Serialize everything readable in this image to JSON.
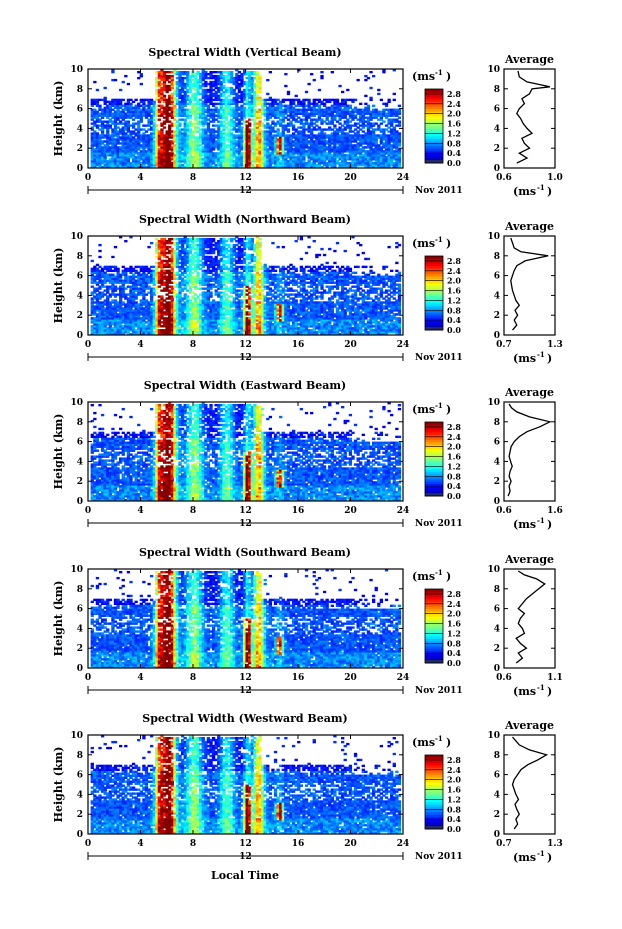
{
  "figure": {
    "xlabel": "Local Time",
    "date_label": "Nov 2011",
    "day_label": "12",
    "ylabel": "Height (km)",
    "colorbar_unit": "(ms",
    "colorbar_unit_exp": "-1",
    "colorbar_unit_end": ")",
    "avg_title": "Average",
    "avg_xunit": "(ms",
    "avg_xunit_exp": "-1",
    "avg_xunit_end": ")"
  },
  "panels": [
    {
      "title": "Spectral Width (Vertical Beam)"
    },
    {
      "title": "Spectral Width (Northward Beam)"
    },
    {
      "title": "Spectral Width (Eastward Beam)"
    },
    {
      "title": "Spectral Width (Southward Beam)"
    },
    {
      "title": "Spectral Width (Westward Beam)"
    }
  ],
  "chart_data": [
    {
      "type": "heatmap",
      "title": "Spectral Width (Vertical Beam)",
      "xlabel": "",
      "ylabel": "Height (km)",
      "xlim": [
        0,
        24
      ],
      "ylim": [
        0,
        10
      ],
      "xticks": [
        0,
        4,
        8,
        12,
        16,
        20,
        24
      ],
      "yticks": [
        0,
        2,
        4,
        6,
        8,
        10
      ],
      "colorbar": {
        "ticks": [
          0.0,
          0.4,
          0.8,
          1.2,
          1.6,
          2.0,
          2.4,
          2.8
        ],
        "range": [
          0,
          3.0
        ]
      },
      "features": [
        {
          "x": [
            5.5,
            6.5
          ],
          "y": [
            0.5,
            10
          ],
          "value": 2.8
        },
        {
          "x": [
            11.8,
            12.3
          ],
          "y": [
            1.5,
            5
          ],
          "value": 2.8
        },
        {
          "x": [
            14.3,
            14.7
          ],
          "y": [
            1.5,
            3
          ],
          "value": 2.6
        }
      ]
    },
    {
      "type": "line",
      "title": "Average",
      "xlabel": "(ms-1)",
      "xlim": [
        0.6,
        1.0
      ],
      "ylim": [
        0,
        10
      ],
      "xticks": [
        0.6,
        1.0
      ],
      "yticks": [
        0,
        2,
        4,
        6,
        8,
        10
      ],
      "series": [
        {
          "x": [
            0.7,
            0.78,
            0.72,
            0.8,
            0.76,
            0.74,
            0.82,
            0.78,
            0.75,
            0.73,
            0.7,
            0.72,
            0.76,
            0.74,
            0.8,
            0.82,
            0.96,
            0.78,
            0.72,
            0.71
          ],
          "y": [
            0.5,
            1,
            1.5,
            2,
            2.5,
            3,
            3.5,
            4,
            4.5,
            5,
            5.5,
            6,
            6.5,
            7,
            7.5,
            8,
            8.2,
            8.7,
            9.2,
            9.8
          ]
        }
      ]
    },
    {
      "type": "heatmap",
      "title": "Spectral Width (Northward Beam)",
      "xlabel": "",
      "ylabel": "Height (km)",
      "xlim": [
        0,
        24
      ],
      "ylim": [
        0,
        10
      ],
      "xticks": [
        0,
        4,
        8,
        12,
        16,
        20,
        24
      ],
      "yticks": [
        0,
        2,
        4,
        6,
        8,
        10
      ],
      "colorbar": {
        "ticks": [
          0.0,
          0.4,
          0.8,
          1.2,
          1.6,
          2.0,
          2.4,
          2.8
        ],
        "range": [
          0,
          3.0
        ]
      },
      "features": [
        {
          "x": [
            5.5,
            6.5
          ],
          "y": [
            0.5,
            10
          ],
          "value": 2.8
        },
        {
          "x": [
            11.8,
            12.3
          ],
          "y": [
            1.5,
            5
          ],
          "value": 2.8
        },
        {
          "x": [
            14.3,
            14.7
          ],
          "y": [
            1.5,
            3
          ],
          "value": 2.6
        }
      ]
    },
    {
      "type": "line",
      "title": "Average",
      "xlabel": "(ms-1)",
      "xlim": [
        0.7,
        1.3
      ],
      "ylim": [
        0,
        10
      ],
      "xticks": [
        0.7,
        1.3
      ],
      "yticks": [
        0,
        2,
        4,
        6,
        8,
        10
      ],
      "series": [
        {
          "x": [
            0.8,
            0.85,
            0.82,
            0.86,
            0.83,
            0.88,
            0.84,
            0.82,
            0.8,
            0.79,
            0.78,
            0.8,
            0.82,
            0.85,
            0.95,
            1.22,
            0.9,
            0.82,
            0.8,
            0.78
          ],
          "y": [
            0.5,
            1,
            1.5,
            2,
            2.5,
            3,
            3.5,
            4,
            4.5,
            5,
            5.5,
            6,
            6.5,
            7,
            7.5,
            8,
            8.4,
            8.8,
            9.3,
            9.8
          ]
        }
      ]
    },
    {
      "type": "heatmap",
      "title": "Spectral Width (Eastward Beam)",
      "xlabel": "",
      "ylabel": "Height (km)",
      "xlim": [
        0,
        24
      ],
      "ylim": [
        0,
        10
      ],
      "xticks": [
        0,
        4,
        8,
        12,
        16,
        20,
        24
      ],
      "yticks": [
        0,
        2,
        4,
        6,
        8,
        10
      ],
      "colorbar": {
        "ticks": [
          0.0,
          0.4,
          0.8,
          1.2,
          1.6,
          2.0,
          2.4,
          2.8
        ],
        "range": [
          0,
          3.0
        ]
      },
      "features": [
        {
          "x": [
            5.5,
            6.5
          ],
          "y": [
            0.5,
            10
          ],
          "value": 2.8
        },
        {
          "x": [
            11.8,
            12.3
          ],
          "y": [
            1.5,
            5
          ],
          "value": 2.8
        },
        {
          "x": [
            14.3,
            14.7
          ],
          "y": [
            1.5,
            3
          ],
          "value": 2.6
        }
      ]
    },
    {
      "type": "line",
      "title": "Average",
      "xlabel": "(ms-1)",
      "xlim": [
        0.6,
        1.6
      ],
      "ylim": [
        0,
        10
      ],
      "xticks": [
        0.6,
        1.6
      ],
      "yticks": [
        0,
        2,
        4,
        6,
        8,
        10
      ],
      "series": [
        {
          "x": [
            0.68,
            0.72,
            0.7,
            0.74,
            0.7,
            0.72,
            0.76,
            0.73,
            0.7,
            0.72,
            0.74,
            0.8,
            0.9,
            1.05,
            1.3,
            1.5,
            1.1,
            0.85,
            0.75,
            0.7
          ],
          "y": [
            0.5,
            1,
            1.5,
            2,
            2.5,
            3,
            3.5,
            4,
            4.5,
            5,
            5.5,
            6,
            6.5,
            7,
            7.5,
            8,
            8.5,
            9,
            9.4,
            9.8
          ]
        }
      ]
    },
    {
      "type": "heatmap",
      "title": "Spectral Width (Southward Beam)",
      "xlabel": "",
      "ylabel": "Height (km)",
      "xlim": [
        0,
        24
      ],
      "ylim": [
        0,
        10
      ],
      "xticks": [
        0,
        4,
        8,
        12,
        16,
        20,
        24
      ],
      "yticks": [
        0,
        2,
        4,
        6,
        8,
        10
      ],
      "colorbar": {
        "ticks": [
          0.0,
          0.4,
          0.8,
          1.2,
          1.6,
          2.0,
          2.4,
          2.8
        ],
        "range": [
          0,
          3.0
        ]
      },
      "features": [
        {
          "x": [
            5.5,
            6.5
          ],
          "y": [
            0.5,
            10
          ],
          "value": 2.8
        },
        {
          "x": [
            11.8,
            12.3
          ],
          "y": [
            1.5,
            5
          ],
          "value": 2.8
        },
        {
          "x": [
            14.3,
            14.7
          ],
          "y": [
            1.5,
            3
          ],
          "value": 2.6
        }
      ]
    },
    {
      "type": "line",
      "title": "Average",
      "xlabel": "(ms-1)",
      "xlim": [
        0.6,
        1.1
      ],
      "ylim": [
        0,
        10
      ],
      "xticks": [
        0.6,
        1.1
      ],
      "yticks": [
        0,
        2,
        4,
        6,
        8,
        10
      ],
      "series": [
        {
          "x": [
            0.72,
            0.78,
            0.74,
            0.82,
            0.76,
            0.72,
            0.8,
            0.78,
            0.74,
            0.76,
            0.8,
            0.74,
            0.78,
            0.82,
            0.88,
            0.94,
            1.0,
            0.92,
            0.8,
            0.74
          ],
          "y": [
            0.5,
            1,
            1.5,
            2,
            2.5,
            3,
            3.5,
            4,
            4.5,
            5,
            5.5,
            6,
            6.5,
            7,
            7.5,
            8,
            8.5,
            9,
            9.4,
            9.8
          ]
        }
      ]
    },
    {
      "type": "heatmap",
      "title": "Spectral Width (Westward Beam)",
      "xlabel": "Local Time",
      "ylabel": "Height (km)",
      "xlim": [
        0,
        24
      ],
      "ylim": [
        0,
        10
      ],
      "xticks": [
        0,
        4,
        8,
        12,
        16,
        20,
        24
      ],
      "yticks": [
        0,
        2,
        4,
        6,
        8,
        10
      ],
      "colorbar": {
        "ticks": [
          0.0,
          0.4,
          0.8,
          1.2,
          1.6,
          2.0,
          2.4,
          2.8
        ],
        "range": [
          0,
          3.0
        ]
      },
      "features": [
        {
          "x": [
            5.5,
            6.5
          ],
          "y": [
            0.5,
            10
          ],
          "value": 2.8
        },
        {
          "x": [
            11.8,
            12.3
          ],
          "y": [
            1.5,
            5
          ],
          "value": 2.8
        },
        {
          "x": [
            14.3,
            14.7
          ],
          "y": [
            1.5,
            3
          ],
          "value": 2.6
        }
      ]
    },
    {
      "type": "line",
      "title": "Average",
      "xlabel": "(ms-1)",
      "xlim": [
        0.7,
        1.3
      ],
      "ylim": [
        0,
        10
      ],
      "xticks": [
        0.7,
        1.3
      ],
      "yticks": [
        0,
        2,
        4,
        6,
        8,
        10
      ],
      "series": [
        {
          "x": [
            0.82,
            0.86,
            0.84,
            0.88,
            0.85,
            0.83,
            0.87,
            0.84,
            0.82,
            0.8,
            0.82,
            0.86,
            0.9,
            0.98,
            1.1,
            1.2,
            1.0,
            0.88,
            0.84,
            0.8
          ],
          "y": [
            0.5,
            1,
            1.5,
            2,
            2.5,
            3,
            3.5,
            4,
            4.5,
            5,
            5.5,
            6,
            6.5,
            7,
            7.5,
            8,
            8.5,
            9,
            9.4,
            9.8
          ]
        }
      ]
    }
  ]
}
